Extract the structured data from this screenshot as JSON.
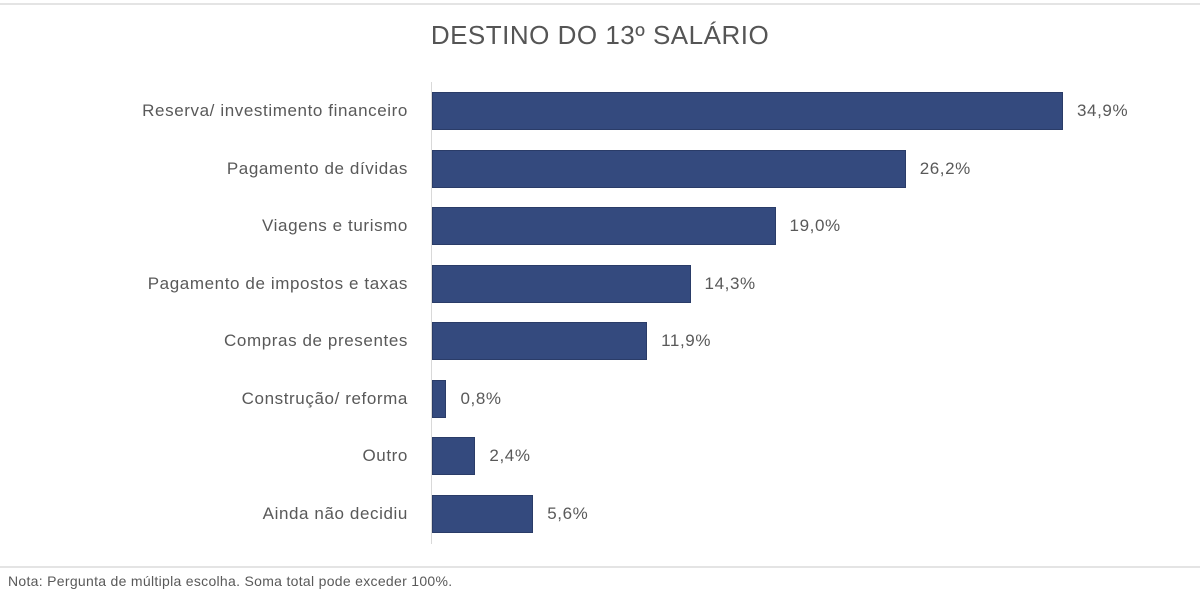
{
  "title": "DESTINO DO 13º SALÁRIO",
  "note": "Nota: Pergunta de múltipla escolha. Soma total pode exceder 100%.",
  "colors": {
    "bar": "#344a7e",
    "text": "#595959",
    "title": "#555555",
    "axis": "#d9d9d9"
  },
  "rows": [
    {
      "label": "Reserva/ investimento financeiro",
      "value": 34.9,
      "value_label": "34,9%"
    },
    {
      "label": "Pagamento de dívidas",
      "value": 26.2,
      "value_label": "26,2%"
    },
    {
      "label": "Viagens e turismo",
      "value": 19.0,
      "value_label": "19,0%"
    },
    {
      "label": "Pagamento de impostos e taxas",
      "value": 14.3,
      "value_label": "14,3%"
    },
    {
      "label": "Compras de presentes",
      "value": 11.9,
      "value_label": "11,9%"
    },
    {
      "label": "Construção/ reforma",
      "value": 0.8,
      "value_label": "0,8%"
    },
    {
      "label": "Outro",
      "value": 2.4,
      "value_label": "2,4%"
    },
    {
      "label": "Ainda não decidiu",
      "value": 5.6,
      "value_label": "5,6%"
    }
  ],
  "chart_data": {
    "type": "bar",
    "orientation": "horizontal",
    "title": "DESTINO DO 13º SALÁRIO",
    "categories": [
      "Reserva/ investimento financeiro",
      "Pagamento de dívidas",
      "Viagens e turismo",
      "Pagamento de impostos e taxas",
      "Compras de presentes",
      "Construção/ reforma",
      "Outro",
      "Ainda não decidiu"
    ],
    "values": [
      34.9,
      26.2,
      19.0,
      14.3,
      11.9,
      0.8,
      2.4,
      5.6
    ],
    "data_labels": [
      "34,9%",
      "26,2%",
      "19,0%",
      "14,3%",
      "11,9%",
      "0,8%",
      "2,4%",
      "5,6%"
    ],
    "unit": "%",
    "xlabel": "",
    "ylabel": "",
    "grid": false,
    "legend": null,
    "annotations": [
      "Nota: Pergunta de múltipla escolha. Soma total pode exceder 100%."
    ]
  }
}
